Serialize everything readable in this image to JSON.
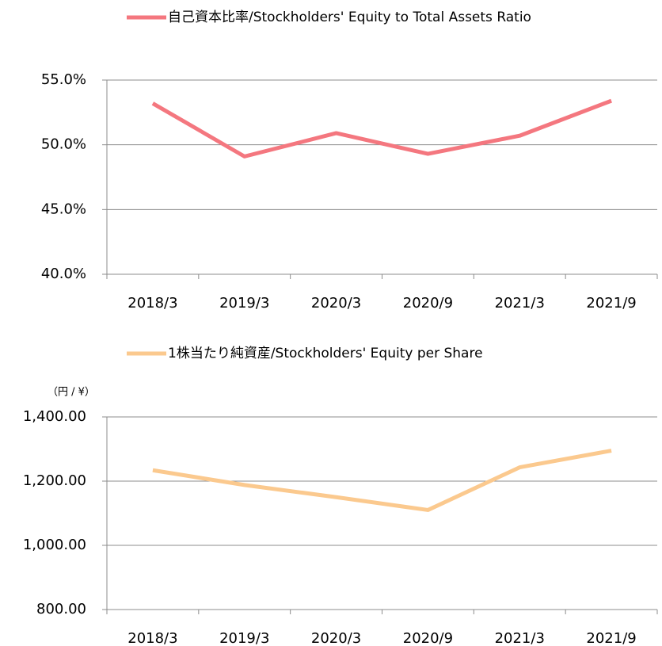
{
  "chart_data": [
    {
      "type": "line",
      "categories": [
        "2018/3",
        "2019/3",
        "2020/3",
        "2020/9",
        "2021/3",
        "2021/9"
      ],
      "series": [
        {
          "name": "自己資本比率/Stockholders' Equity to Total Assets Ratio",
          "color": "#f4777f",
          "values": [
            53.2,
            49.1,
            50.9,
            49.3,
            50.7,
            53.4
          ]
        }
      ],
      "ylim": [
        40,
        55
      ],
      "yticks": [
        {
          "value": 40,
          "label": "40.0%"
        },
        {
          "value": 45,
          "label": "45.0%"
        },
        {
          "value": 50,
          "label": "50.0%"
        },
        {
          "value": 55,
          "label": "55.0%"
        }
      ],
      "grid": true,
      "legend": "top"
    },
    {
      "type": "line",
      "unit_label": "（円 / ¥）",
      "categories": [
        "2018/3",
        "2019/3",
        "2020/3",
        "2020/9",
        "2021/3",
        "2021/9"
      ],
      "series": [
        {
          "name": "1株当たり純資産/Stockholders' Equity per Share",
          "color": "#fbc98e",
          "values": [
            1234,
            1188,
            1150,
            1110,
            1243,
            1295
          ]
        }
      ],
      "ylim": [
        800,
        1400
      ],
      "yticks": [
        {
          "value": 800,
          "label": "800.00"
        },
        {
          "value": 1000,
          "label": "1,000.00"
        },
        {
          "value": 1200,
          "label": "1,200.00"
        },
        {
          "value": 1400,
          "label": "1,400.00"
        }
      ],
      "grid": true,
      "legend": "top"
    }
  ]
}
